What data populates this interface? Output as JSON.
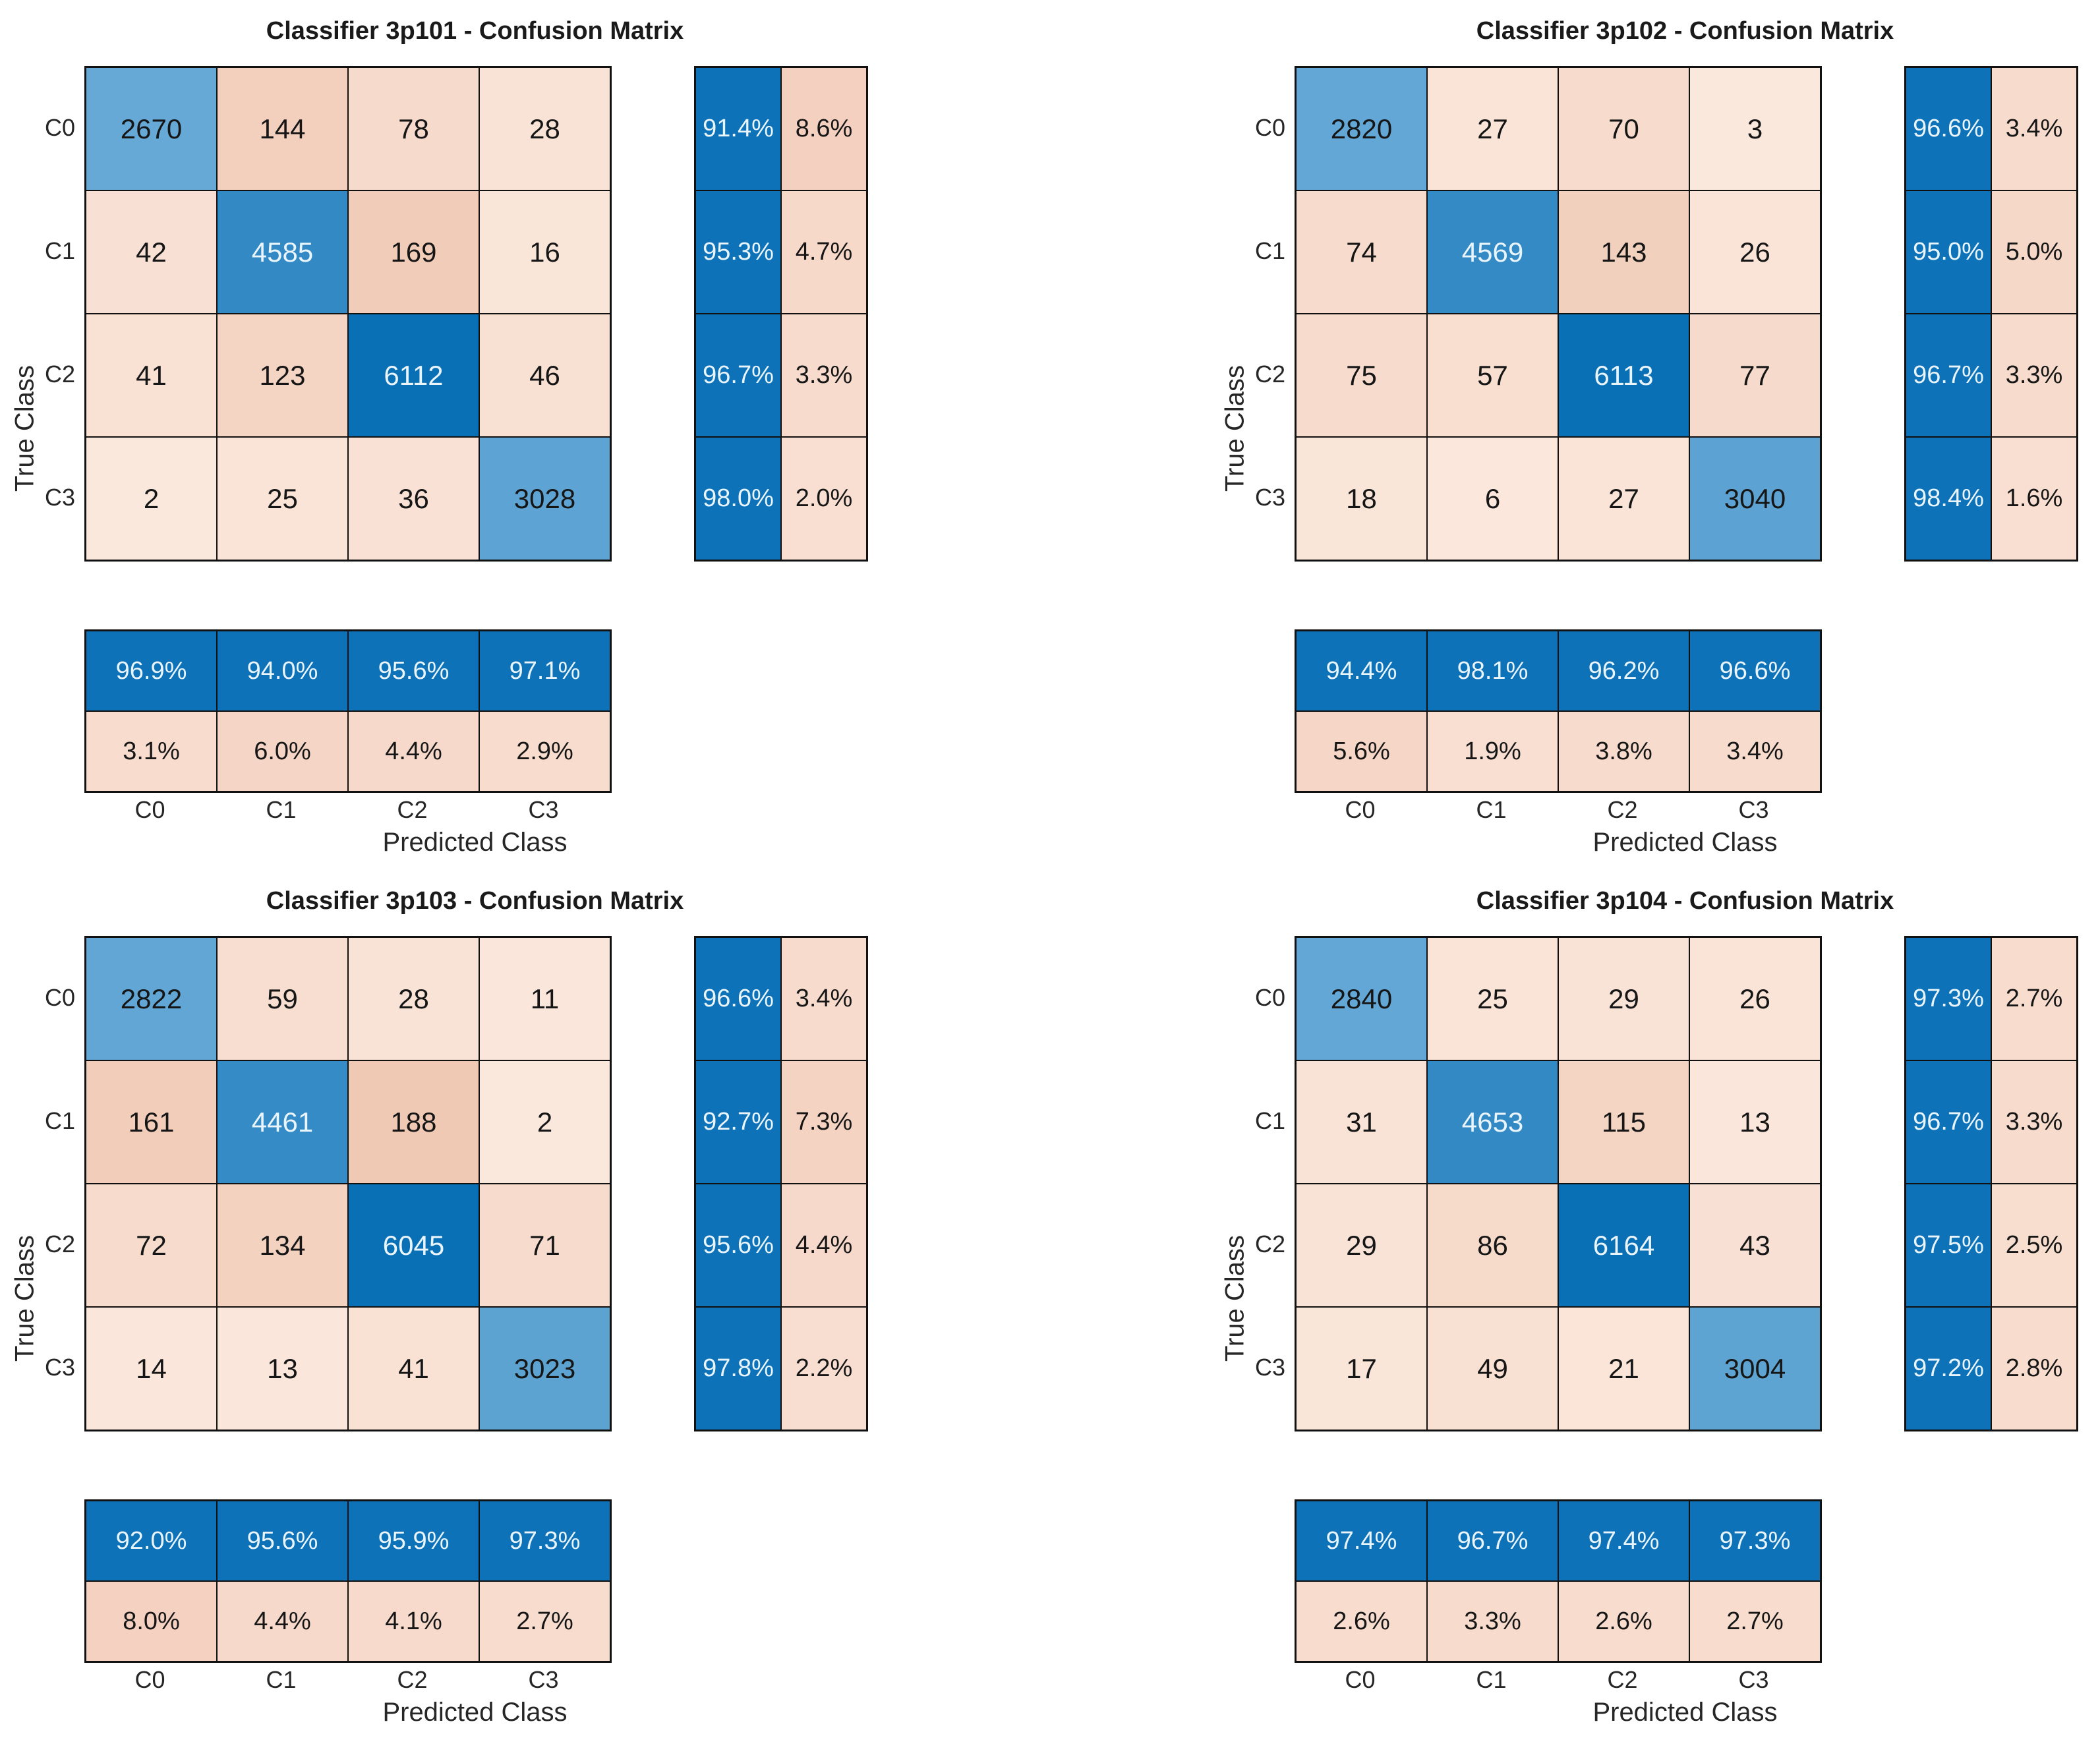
{
  "colors": {
    "diag_dark": "#0a70b6",
    "diag_light": "#aed6ef",
    "offdiag_light": "#fbe8dd",
    "offdiag_dark": "#efc7b1",
    "summary_blue": "#0d72b8",
    "summary_pink_light": "#fae3d6",
    "summary_pink_dark": "#f2cdbb",
    "text_dark": "#161616",
    "text_light": "#e9f4fb",
    "grid_line": "#111111",
    "background": "#ffffff"
  },
  "chart_data": [
    {
      "type": "heatmap",
      "title": "Classifier 3p101 - Confusion Matrix",
      "xlabel": "Predicted Class",
      "ylabel": "True Class",
      "classes": [
        "C0",
        "C1",
        "C2",
        "C3"
      ],
      "matrix": [
        [
          2670,
          144,
          78,
          28
        ],
        [
          42,
          4585,
          169,
          16
        ],
        [
          41,
          123,
          6112,
          46
        ],
        [
          2,
          25,
          36,
          3028
        ]
      ],
      "row_summary": [
        [
          "91.4%",
          "8.6%"
        ],
        [
          "95.3%",
          "4.7%"
        ],
        [
          "96.7%",
          "3.3%"
        ],
        [
          "98.0%",
          "2.0%"
        ]
      ],
      "col_summary": [
        [
          "96.9%",
          "3.1%"
        ],
        [
          "94.0%",
          "6.0%"
        ],
        [
          "95.6%",
          "4.4%"
        ],
        [
          "97.1%",
          "2.9%"
        ]
      ],
      "legend_position": "none",
      "grid": "cell-borders"
    },
    {
      "type": "heatmap",
      "title": "Classifier 3p102 - Confusion Matrix",
      "xlabel": "Predicted Class",
      "ylabel": "True Class",
      "classes": [
        "C0",
        "C1",
        "C2",
        "C3"
      ],
      "matrix": [
        [
          2820,
          27,
          70,
          3
        ],
        [
          74,
          4569,
          143,
          26
        ],
        [
          75,
          57,
          6113,
          77
        ],
        [
          18,
          6,
          27,
          3040
        ]
      ],
      "row_summary": [
        [
          "96.6%",
          "3.4%"
        ],
        [
          "95.0%",
          "5.0%"
        ],
        [
          "96.7%",
          "3.3%"
        ],
        [
          "98.4%",
          "1.6%"
        ]
      ],
      "col_summary": [
        [
          "94.4%",
          "5.6%"
        ],
        [
          "98.1%",
          "1.9%"
        ],
        [
          "96.2%",
          "3.8%"
        ],
        [
          "96.6%",
          "3.4%"
        ]
      ],
      "legend_position": "none",
      "grid": "cell-borders"
    },
    {
      "type": "heatmap",
      "title": "Classifier 3p103 - Confusion Matrix",
      "xlabel": "Predicted Class",
      "ylabel": "True Class",
      "classes": [
        "C0",
        "C1",
        "C2",
        "C3"
      ],
      "matrix": [
        [
          2822,
          59,
          28,
          11
        ],
        [
          161,
          4461,
          188,
          2
        ],
        [
          72,
          134,
          6045,
          71
        ],
        [
          14,
          13,
          41,
          3023
        ]
      ],
      "row_summary": [
        [
          "96.6%",
          "3.4%"
        ],
        [
          "92.7%",
          "7.3%"
        ],
        [
          "95.6%",
          "4.4%"
        ],
        [
          "97.8%",
          "2.2%"
        ]
      ],
      "col_summary": [
        [
          "92.0%",
          "8.0%"
        ],
        [
          "95.6%",
          "4.4%"
        ],
        [
          "95.9%",
          "4.1%"
        ],
        [
          "97.3%",
          "2.7%"
        ]
      ],
      "legend_position": "none",
      "grid": "cell-borders"
    },
    {
      "type": "heatmap",
      "title": "Classifier 3p104 - Confusion Matrix",
      "xlabel": "Predicted Class",
      "ylabel": "True Class",
      "classes": [
        "C0",
        "C1",
        "C2",
        "C3"
      ],
      "matrix": [
        [
          2840,
          25,
          29,
          26
        ],
        [
          31,
          4653,
          115,
          13
        ],
        [
          29,
          86,
          6164,
          43
        ],
        [
          17,
          49,
          21,
          3004
        ]
      ],
      "row_summary": [
        [
          "97.3%",
          "2.7%"
        ],
        [
          "96.7%",
          "3.3%"
        ],
        [
          "97.5%",
          "2.5%"
        ],
        [
          "97.2%",
          "2.8%"
        ]
      ],
      "col_summary": [
        [
          "97.4%",
          "2.6%"
        ],
        [
          "96.7%",
          "3.3%"
        ],
        [
          "97.4%",
          "2.6%"
        ],
        [
          "97.3%",
          "2.7%"
        ]
      ],
      "legend_position": "none",
      "grid": "cell-borders"
    }
  ]
}
